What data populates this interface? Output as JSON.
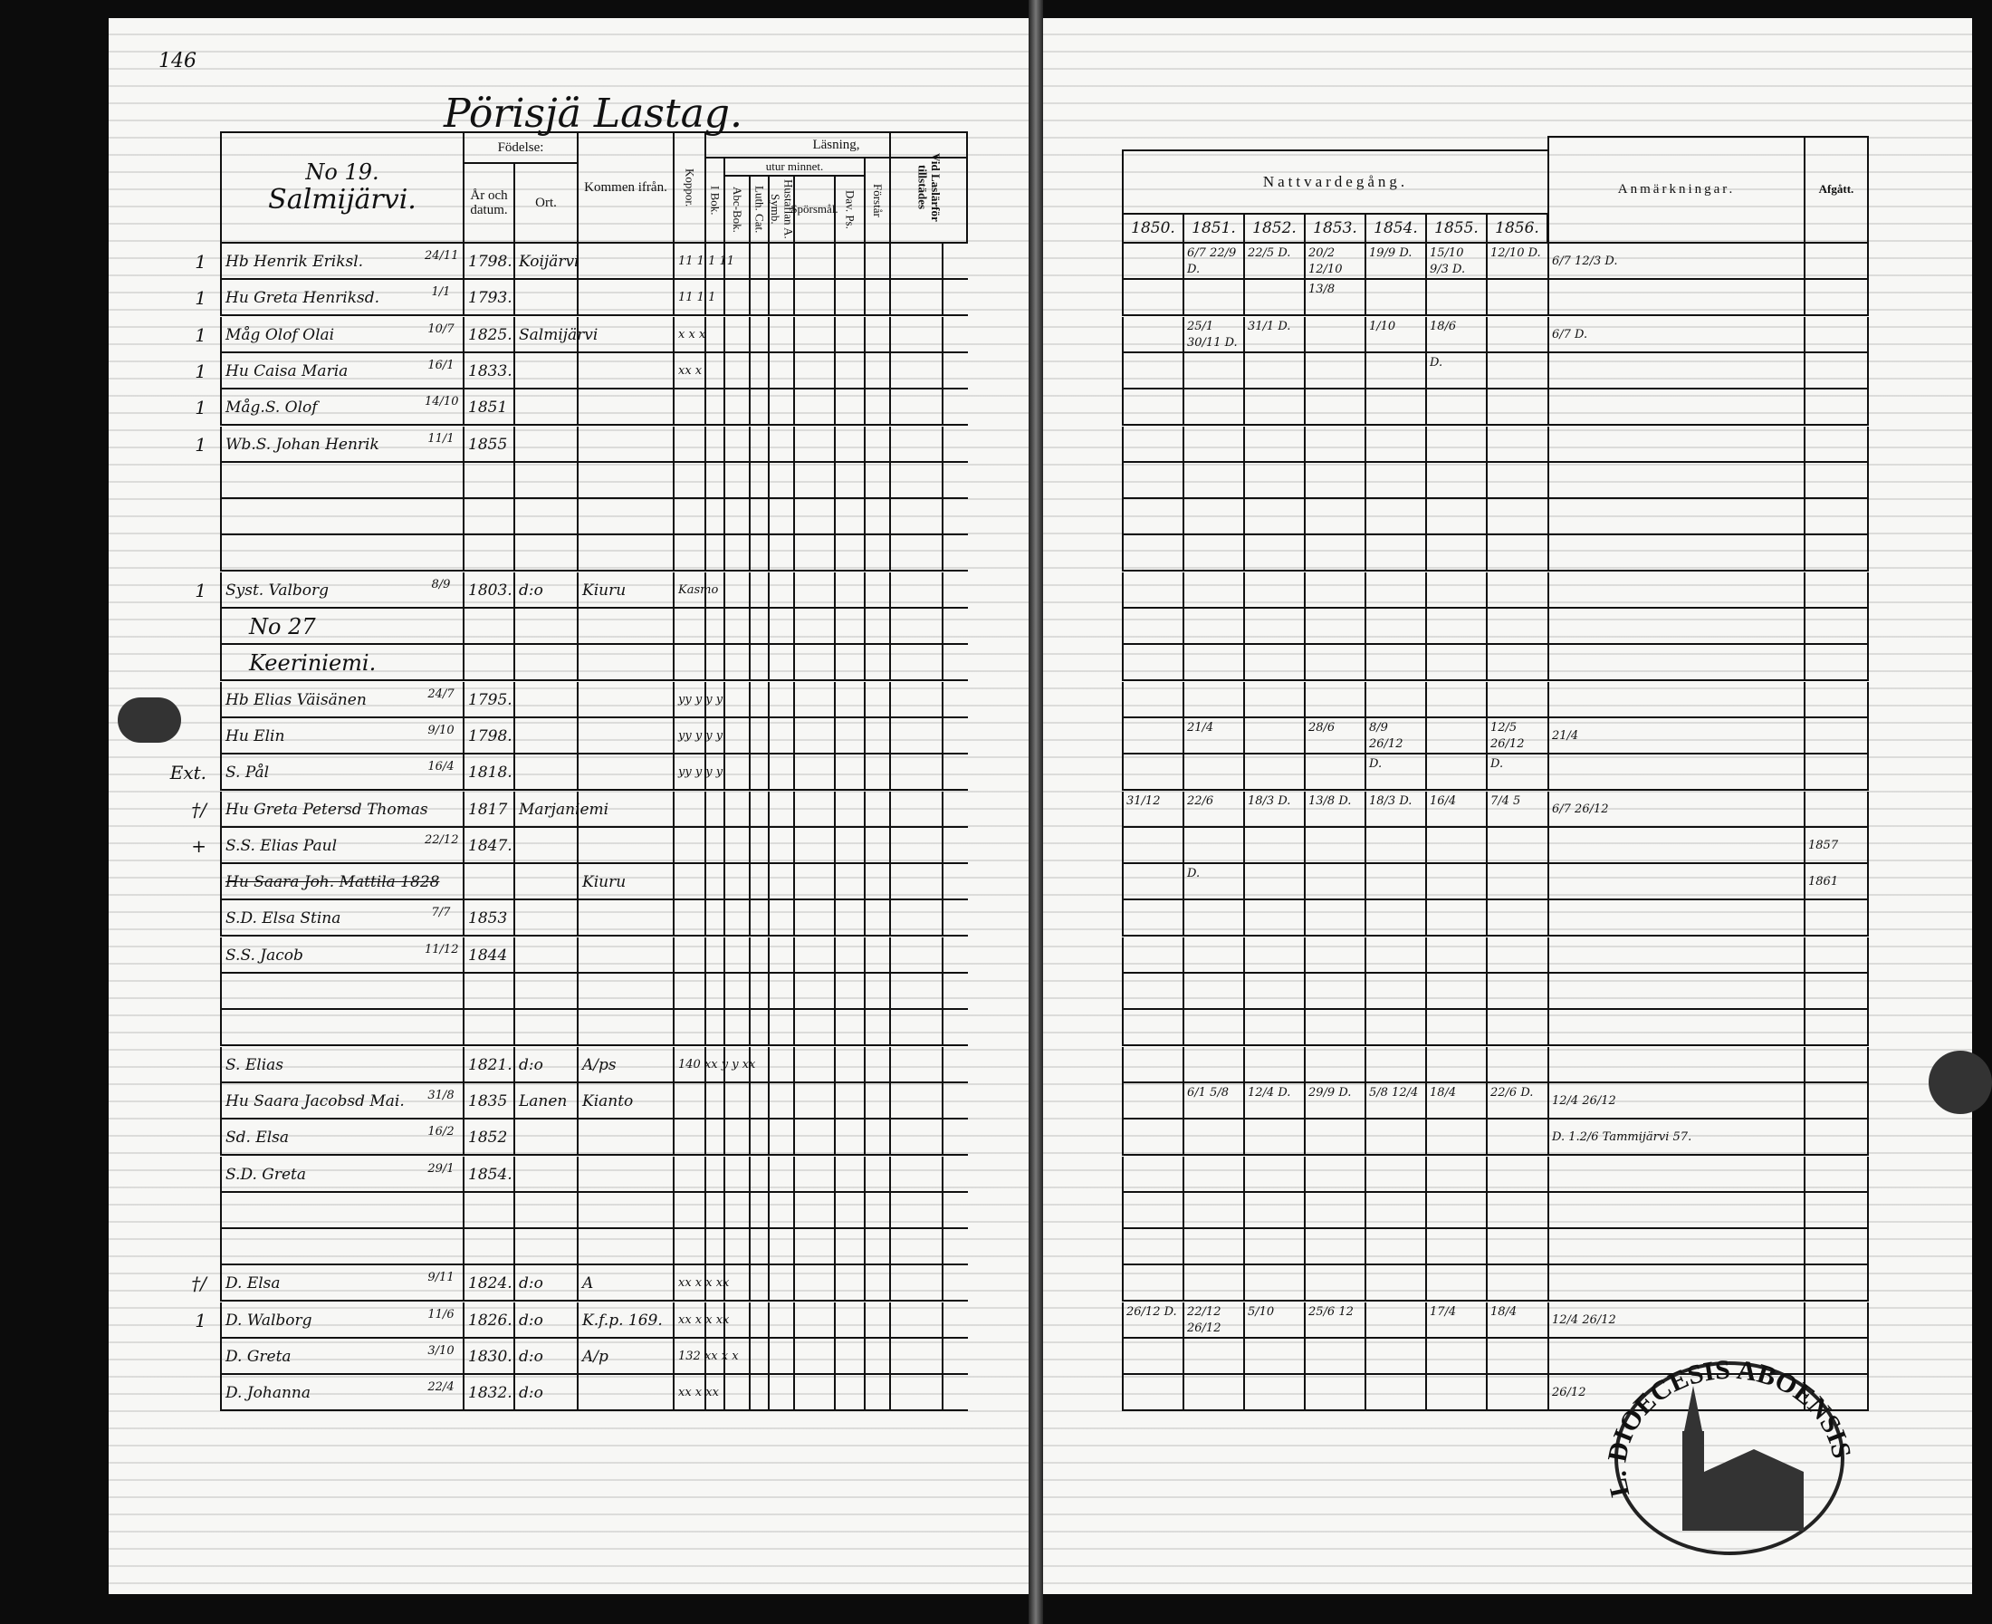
{
  "left_page": {
    "page_number": "146",
    "title": "Pörisjä Lastag.",
    "household_heading": {
      "number": "No 19.",
      "name": "Salmijärvi."
    },
    "headers": {
      "fodelse": "Födelse:",
      "ar_och_datum": "År och datum.",
      "ort": "Ort.",
      "kommen_ifran": "Kommen ifrån.",
      "koppor": "Koppor.",
      "lasning": "Läsning,",
      "i_bok": "I Bok.",
      "utur_minnet": "utur minnet.",
      "abc_bok": "Abc-Bok.",
      "luth_cat": "Luth. Cat.",
      "hustaflan": "Hustaflan A. Symb.",
      "sporsmal": "Spörsmål.",
      "dav_ps": "Dav. Ps.",
      "forstar": "Förstår",
      "vid_lasl": "Vid Laslärför tillstädes"
    },
    "rows": [
      {
        "mark": "1",
        "name": "Hb Henrik Eriksl.",
        "date": "24/11",
        "year": "1798.",
        "ort": "Koijärvi",
        "from": "",
        "reading": "11  1  1  11"
      },
      {
        "mark": "1",
        "name": "Hu Greta Henriksd.",
        "date": "1/1",
        "year": "1793.",
        "ort": "",
        "from": "",
        "reading": "11  1  1"
      },
      {
        "mark": "1",
        "name": "Måg Olof Olai",
        "date": "10/7",
        "year": "1825.",
        "ort": "Salmijärvi",
        "from": "",
        "reading": "x  x  x"
      },
      {
        "mark": "1",
        "name": "Hu Caisa Maria",
        "date": "16/1",
        "year": "1833.",
        "ort": "",
        "from": "",
        "reading": "xx x"
      },
      {
        "mark": "1",
        "name": "Måg.S. Olof",
        "date": "14/10",
        "year": "1851",
        "ort": "",
        "from": "",
        "reading": ""
      },
      {
        "mark": "1",
        "name": "Wb.S. Johan Henrik",
        "date": "11/1",
        "year": "1855",
        "ort": "",
        "from": "",
        "reading": ""
      },
      {
        "mark": "",
        "name": "",
        "date": "",
        "year": "",
        "ort": "",
        "from": "",
        "reading": ""
      },
      {
        "mark": "",
        "name": "",
        "date": "",
        "year": "",
        "ort": "",
        "from": "",
        "reading": ""
      },
      {
        "mark": "",
        "name": "",
        "date": "",
        "year": "",
        "ort": "",
        "from": "",
        "reading": ""
      },
      {
        "mark": "1",
        "name": "Syst. Valborg",
        "date": "8/9",
        "year": "1803.",
        "ort": "d:o",
        "from": "Kiuru",
        "reading": "Kasmo"
      },
      {
        "mark": "",
        "name": "No 27",
        "date": "",
        "year": "",
        "ort": "",
        "from": "",
        "reading": "",
        "heading": true
      },
      {
        "mark": "",
        "name": "Keeriniemi.",
        "date": "",
        "year": "",
        "ort": "",
        "from": "",
        "reading": "",
        "heading": true
      },
      {
        "mark": "",
        "name": "Hb Elias Väisänen",
        "date": "24/7",
        "year": "1795.",
        "ort": "",
        "from": "",
        "reading": "yy y y y"
      },
      {
        "mark": "",
        "name": "Hu Elin",
        "date": "9/10",
        "year": "1798.",
        "ort": "",
        "from": "",
        "reading": "yy y y y"
      },
      {
        "mark": "Ext.",
        "name": "S. Pål",
        "date": "16/4",
        "year": "1818.",
        "ort": "",
        "from": "",
        "reading": "yy y y y"
      },
      {
        "mark": "†/",
        "name": "Hu Greta Petersd Thomas",
        "date": "",
        "year": "1817",
        "ort": "Marjaniemi",
        "from": "",
        "reading": ""
      },
      {
        "mark": "+",
        "name": "S.S. Elias Paul",
        "date": "22/12",
        "year": "1847.",
        "ort": "",
        "from": "",
        "reading": ""
      },
      {
        "mark": "",
        "name": "Hu Saara Joh. Mattila 1828",
        "date": "",
        "year": "",
        "ort": "",
        "from": "Kiuru",
        "reading": "",
        "struck": true
      },
      {
        "mark": "",
        "name": "S.D. Elsa Stina",
        "date": "7/7",
        "year": "1853",
        "ort": "",
        "from": "",
        "reading": ""
      },
      {
        "mark": "",
        "name": "S.S. Jacob",
        "date": "11/12",
        "year": "1844",
        "ort": "",
        "from": "",
        "reading": ""
      },
      {
        "mark": "",
        "name": "",
        "date": "",
        "year": "",
        "ort": "",
        "from": "",
        "reading": ""
      },
      {
        "mark": "",
        "name": "",
        "date": "",
        "year": "",
        "ort": "",
        "from": "",
        "reading": ""
      },
      {
        "mark": "",
        "name": "S. Elias",
        "date": "",
        "year": "1821.",
        "ort": "d:o",
        "from": "A/ps",
        "reading": "140 xx y y xx"
      },
      {
        "mark": "",
        "name": "Hu Saara Jacobsd Mai.",
        "date": "31/8",
        "year": "1835",
        "ort": "Lanen",
        "from": "Kianto",
        "reading": ""
      },
      {
        "mark": "",
        "name": "Sd. Elsa",
        "date": "16/2",
        "year": "1852",
        "ort": "",
        "from": "",
        "reading": ""
      },
      {
        "mark": "",
        "name": "S.D. Greta",
        "date": "29/1",
        "year": "1854.",
        "ort": "",
        "from": "",
        "reading": ""
      },
      {
        "mark": "",
        "name": "",
        "date": "",
        "year": "",
        "ort": "",
        "from": "",
        "reading": ""
      },
      {
        "mark": "",
        "name": "",
        "date": "",
        "year": "",
        "ort": "",
        "from": "",
        "reading": ""
      },
      {
        "mark": "†/",
        "name": "D. Elsa",
        "date": "9/11",
        "year": "1824.",
        "ort": "d:o",
        "from": "A",
        "reading": "xx x x xx"
      },
      {
        "mark": "1",
        "name": "D. Walborg",
        "date": "11/6",
        "year": "1826.",
        "ort": "d:o",
        "from": "K.f.p. 169.",
        "reading": "xx x x xx"
      },
      {
        "mark": "",
        "name": "D. Greta",
        "date": "3/10",
        "year": "1830.",
        "ort": "d:o",
        "from": "A/p",
        "reading": "132 xx x x"
      },
      {
        "mark": "",
        "name": "D. Johanna",
        "date": "22/4",
        "year": "1832.",
        "ort": "d:o",
        "from": "",
        "reading": "xx x xx"
      }
    ]
  },
  "right_page": {
    "headers": {
      "nattvardegang": "Nattvardegång.",
      "years": [
        "1850.",
        "1851.",
        "1852.",
        "1853.",
        "1854.",
        "1855.",
        "1856."
      ],
      "anmarkningar": "Anmärkningar.",
      "afgatt": "Afgått."
    },
    "rows": [
      {
        "communion": [
          "",
          "6/7 22/9 D.",
          "22/5 D.",
          "20/2 12/10",
          "19/9 D.",
          "15/10 9/3 D.",
          "12/10 D."
        ],
        "remark": "6/7 12/3 D.",
        "afgatt": ""
      },
      {
        "communion": [
          "",
          "",
          "",
          "13/8",
          "",
          "",
          ""
        ],
        "remark": "",
        "afgatt": ""
      },
      {
        "communion": [
          "",
          "25/1 30/11 D.",
          "31/1 D.",
          "",
          "1/10",
          "18/6",
          ""
        ],
        "remark": "6/7 D.",
        "afgatt": ""
      },
      {
        "communion": [
          "",
          "",
          "",
          "",
          "",
          "D.",
          ""
        ],
        "remark": "",
        "afgatt": ""
      },
      {
        "communion": [
          "",
          "",
          "",
          "",
          "",
          "",
          ""
        ],
        "remark": "",
        "afgatt": ""
      },
      {
        "communion": [
          "",
          "",
          "",
          "",
          "",
          "",
          ""
        ],
        "remark": "",
        "afgatt": ""
      },
      {
        "communion": [
          "",
          "",
          "",
          "",
          "",
          "",
          ""
        ],
        "remark": "",
        "afgatt": ""
      },
      {
        "communion": [
          "",
          "",
          "",
          "",
          "",
          "",
          ""
        ],
        "remark": "",
        "afgatt": ""
      },
      {
        "communion": [
          "",
          "",
          "",
          "",
          "",
          "",
          ""
        ],
        "remark": "",
        "afgatt": ""
      },
      {
        "communion": [
          "",
          "",
          "",
          "",
          "",
          "",
          ""
        ],
        "remark": "",
        "afgatt": ""
      },
      {
        "communion": [
          "",
          "",
          "",
          "",
          "",
          "",
          ""
        ],
        "remark": "",
        "afgatt": ""
      },
      {
        "communion": [
          "",
          "",
          "",
          "",
          "",
          "",
          ""
        ],
        "remark": "",
        "afgatt": ""
      },
      {
        "communion": [
          "",
          "",
          "",
          "",
          "",
          "",
          ""
        ],
        "remark": "",
        "afgatt": ""
      },
      {
        "communion": [
          "",
          "21/4",
          "",
          "28/6",
          "8/9 26/12",
          "",
          "12/5 26/12"
        ],
        "remark": "21/4",
        "afgatt": ""
      },
      {
        "communion": [
          "",
          "",
          "",
          "",
          "D.",
          "",
          "D."
        ],
        "remark": "",
        "afgatt": ""
      },
      {
        "communion": [
          "31/12",
          "22/6",
          "18/3 D.",
          "13/8 D.",
          "18/3 D.",
          "16/4",
          "7/4 5"
        ],
        "remark": "6/7 26/12",
        "afgatt": ""
      },
      {
        "communion": [
          "",
          "",
          "",
          "",
          "",
          "",
          ""
        ],
        "remark": "",
        "afgatt": "1857"
      },
      {
        "communion": [
          "",
          "D.",
          "",
          "",
          "",
          "",
          ""
        ],
        "remark": "",
        "afgatt": "1861"
      },
      {
        "communion": [
          "",
          "",
          "",
          "",
          "",
          "",
          ""
        ],
        "remark": "",
        "afgatt": ""
      },
      {
        "communion": [
          "",
          "",
          "",
          "",
          "",
          "",
          ""
        ],
        "remark": "",
        "afgatt": ""
      },
      {
        "communion": [
          "",
          "",
          "",
          "",
          "",
          "",
          ""
        ],
        "remark": "",
        "afgatt": ""
      },
      {
        "communion": [
          "",
          "",
          "",
          "",
          "",
          "",
          ""
        ],
        "remark": "",
        "afgatt": ""
      },
      {
        "communion": [
          "",
          "",
          "",
          "",
          "",
          "",
          ""
        ],
        "remark": "",
        "afgatt": ""
      },
      {
        "communion": [
          "",
          "6/1 5/8",
          "12/4 D.",
          "29/9 D.",
          "5/8 12/4",
          "18/4",
          "22/6 D."
        ],
        "remark": "12/4 26/12",
        "afgatt": ""
      },
      {
        "communion": [
          "",
          "",
          "",
          "",
          "",
          "",
          ""
        ],
        "remark": "D. 1.2/6 Tammijärvi 57.",
        "afgatt": ""
      },
      {
        "communion": [
          "",
          "",
          "",
          "",
          "",
          "",
          ""
        ],
        "remark": "",
        "afgatt": ""
      },
      {
        "communion": [
          "",
          "",
          "",
          "",
          "",
          "",
          ""
        ],
        "remark": "",
        "afgatt": ""
      },
      {
        "communion": [
          "",
          "",
          "",
          "",
          "",
          "",
          ""
        ],
        "remark": "",
        "afgatt": ""
      },
      {
        "communion": [
          "",
          "",
          "",
          "",
          "",
          "",
          ""
        ],
        "remark": "",
        "afgatt": ""
      },
      {
        "communion": [
          "26/12 D.",
          "22/12 26/12",
          "5/10",
          "25/6 12",
          "",
          "17/4",
          "18/4"
        ],
        "remark": "12/4 26/12",
        "afgatt": ""
      },
      {
        "communion": [
          "",
          "",
          "",
          "",
          "",
          "",
          ""
        ],
        "remark": "",
        "afgatt": ""
      },
      {
        "communion": [
          "",
          "",
          "",
          "",
          "",
          "",
          ""
        ],
        "remark": "26/12",
        "afgatt": ""
      }
    ],
    "stamp_text": "L. DIOECESIS ABOENSIS"
  }
}
